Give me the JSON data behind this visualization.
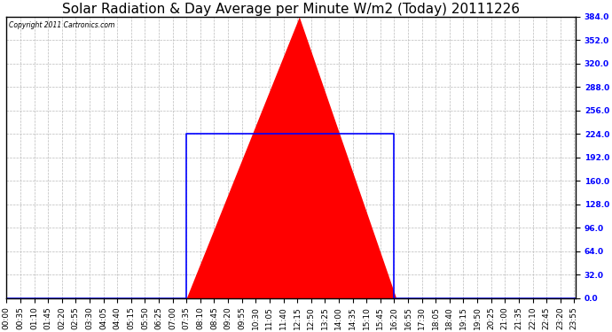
{
  "title": "Solar Radiation & Day Average per Minute W/m2 (Today) 20111226",
  "copyright_text": "Copyright 2011 Cartronics.com",
  "y_min": 0.0,
  "y_max": 384.0,
  "y_ticks": [
    0.0,
    32.0,
    64.0,
    96.0,
    128.0,
    160.0,
    192.0,
    224.0,
    256.0,
    288.0,
    320.0,
    352.0,
    384.0
  ],
  "background_color": "#ffffff",
  "plot_bg_color": "#ffffff",
  "solar_fill_color": "#ff0000",
  "avg_line_color": "#0000ff",
  "grid_color": "#bbbbbb",
  "title_fontsize": 11,
  "tick_fontsize": 6.5,
  "num_minutes": 1440,
  "solar_peak_minute": 740,
  "solar_peak_value": 384.0,
  "solar_start_minute": 455,
  "solar_end_minute": 985,
  "avg_value": 224.0,
  "avg_start_minute": 455,
  "avg_end_minute": 980,
  "x_tick_labels": [
    "00:00",
    "00:35",
    "01:10",
    "01:45",
    "02:20",
    "02:55",
    "03:30",
    "04:05",
    "04:40",
    "05:15",
    "05:50",
    "06:25",
    "07:00",
    "07:35",
    "08:10",
    "08:45",
    "09:20",
    "09:55",
    "10:30",
    "11:05",
    "11:40",
    "12:15",
    "12:50",
    "13:25",
    "14:00",
    "14:35",
    "15:10",
    "15:45",
    "16:20",
    "16:55",
    "17:30",
    "18:05",
    "18:40",
    "19:15",
    "19:50",
    "20:25",
    "21:00",
    "21:35",
    "22:10",
    "22:45",
    "23:20",
    "23:55"
  ],
  "x_tick_positions": [
    0,
    35,
    70,
    105,
    140,
    175,
    210,
    245,
    280,
    315,
    350,
    385,
    420,
    455,
    490,
    525,
    560,
    595,
    630,
    665,
    700,
    735,
    770,
    805,
    840,
    875,
    910,
    945,
    980,
    1015,
    1050,
    1085,
    1120,
    1155,
    1190,
    1225,
    1260,
    1295,
    1330,
    1365,
    1400,
    1435
  ]
}
